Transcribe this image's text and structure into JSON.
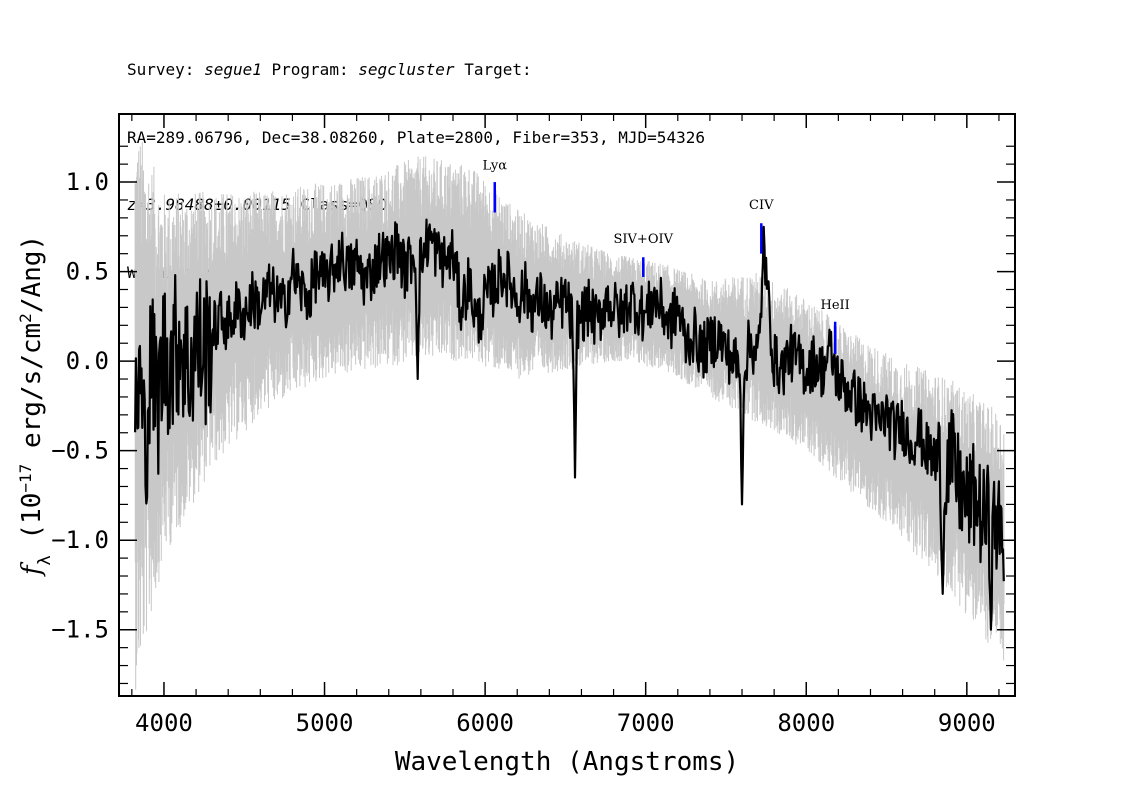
{
  "header": {
    "survey_label": "Survey:",
    "survey": "segue1",
    "program_label": "Program:",
    "program": "segcluster",
    "target_label": "Target:",
    "line2": "RA=289.06796, Dec=38.08260, Plate=2800, Fiber=353, MJD=54326",
    "redshift": "z=3.98488±0.00115",
    "class": "Class=QSO",
    "warnings": "Warnings: SKY SMALL_DELTA_CHI2"
  },
  "chart_data": {
    "type": "line",
    "title": "",
    "xlabel": "Wavelength (Angstroms)",
    "ylabel": "f_λ (10^-17 erg/s/cm²/Ang)",
    "xlim": [
      3720,
      9300
    ],
    "ylim": [
      -1.87,
      1.38
    ],
    "x_ticks": [
      4000,
      5000,
      6000,
      7000,
      8000,
      9000
    ],
    "x_tick_labels": [
      "4000",
      "5000",
      "6000",
      "7000",
      "8000",
      "9000"
    ],
    "y_ticks": [
      -1.5,
      -1.0,
      -0.5,
      0.0,
      0.5,
      1.0
    ],
    "y_tick_labels": [
      "−1.5",
      "−1.0",
      "−0.5",
      "0.0",
      "0.5",
      "1.0"
    ],
    "series": [
      {
        "name": "flux",
        "color": "#000000",
        "x": [
          3820,
          3850,
          3880,
          3920,
          3960,
          4000,
          4050,
          4100,
          4150,
          4200,
          4250,
          4300,
          4350,
          4400,
          4450,
          4500,
          4550,
          4600,
          4650,
          4700,
          4750,
          4800,
          4850,
          4900,
          4950,
          5000,
          5050,
          5100,
          5150,
          5200,
          5250,
          5300,
          5350,
          5400,
          5450,
          5500,
          5550,
          5600,
          5650,
          5700,
          5750,
          5800,
          5850,
          5900,
          5950,
          6000,
          6050,
          6100,
          6150,
          6200,
          6250,
          6300,
          6350,
          6400,
          6450,
          6500,
          6550,
          6600,
          6650,
          6700,
          6750,
          6800,
          6850,
          6900,
          6950,
          7000,
          7050,
          7100,
          7150,
          7200,
          7250,
          7300,
          7350,
          7400,
          7450,
          7500,
          7550,
          7600,
          7650,
          7700,
          7750,
          7800,
          7850,
          7900,
          7950,
          8000,
          8050,
          8100,
          8150,
          8200,
          8250,
          8300,
          8350,
          8400,
          8450,
          8500,
          8550,
          8600,
          8650,
          8700,
          8750,
          8800,
          8850,
          8900,
          8950,
          9000,
          9050,
          9100,
          9150,
          9200,
          9230
        ],
        "y": [
          -0.3,
          -0.1,
          -0.5,
          0.0,
          -0.25,
          0.05,
          0.0,
          0.15,
          -0.05,
          0.1,
          0.05,
          0.15,
          0.25,
          0.2,
          0.3,
          0.25,
          0.35,
          0.3,
          0.4,
          0.35,
          0.3,
          0.5,
          0.4,
          0.35,
          0.5,
          0.45,
          0.5,
          0.6,
          0.5,
          0.55,
          0.45,
          0.5,
          0.6,
          0.55,
          0.65,
          0.5,
          0.6,
          0.55,
          0.7,
          0.6,
          0.55,
          0.6,
          0.3,
          0.45,
          0.2,
          0.35,
          0.4,
          0.5,
          0.45,
          0.35,
          0.4,
          0.3,
          0.35,
          0.25,
          0.3,
          0.35,
          0.2,
          0.25,
          0.3,
          0.2,
          0.35,
          0.3,
          0.25,
          0.35,
          0.3,
          0.25,
          0.35,
          0.3,
          0.2,
          0.3,
          0.1,
          0.15,
          0.05,
          0.1,
          0.15,
          0.05,
          0.0,
          -0.05,
          0.1,
          0.05,
          0.45,
          0.0,
          -0.05,
          0.05,
          0.0,
          -0.05,
          0.0,
          -0.05,
          0.05,
          -0.1,
          -0.15,
          -0.2,
          -0.25,
          -0.3,
          -0.35,
          -0.3,
          -0.4,
          -0.35,
          -0.45,
          -0.4,
          -0.5,
          -0.55,
          -0.6,
          -0.55,
          -0.7,
          -0.8,
          -0.75,
          -0.9,
          -0.85,
          -0.95,
          -1.0
        ],
        "features": [
          {
            "x": 5580,
            "y": -0.1
          },
          {
            "x": 6560,
            "y": -0.65
          },
          {
            "x": 7600,
            "y": -0.8
          },
          {
            "x": 7735,
            "y": 0.75
          },
          {
            "x": 8850,
            "y": -1.3
          },
          {
            "x": 9150,
            "y": -1.5
          }
        ]
      },
      {
        "name": "noise envelope",
        "color": "#c8c8c8",
        "x": [
          3820,
          4000,
          4300,
          4600,
          5000,
          5300,
          5600,
          5900,
          6200,
          6500,
          6800,
          7100,
          7400,
          7700,
          8000,
          8300,
          8600,
          8900,
          9230
        ],
        "upper": [
          1.35,
          0.95,
          0.95,
          0.95,
          1.0,
          1.05,
          1.15,
          1.1,
          0.85,
          0.7,
          0.6,
          0.55,
          0.45,
          0.5,
          0.35,
          0.15,
          0.0,
          -0.1,
          -0.3
        ],
        "lower": [
          -1.85,
          -1.1,
          -0.6,
          -0.3,
          -0.1,
          -0.05,
          0.0,
          0.0,
          -0.1,
          -0.05,
          0.0,
          -0.05,
          -0.2,
          -0.35,
          -0.5,
          -0.75,
          -1.0,
          -1.3,
          -1.7
        ]
      }
    ],
    "line_markers": [
      {
        "label": "Lyα",
        "x": 6060,
        "y_bottom": 0.83,
        "y_top": 1.0,
        "label_y": 1.07
      },
      {
        "label": "SIV+OIV",
        "x": 6985,
        "y_bottom": 0.47,
        "y_top": 0.58,
        "label_y": 0.66
      },
      {
        "label": "CIV",
        "x": 7720,
        "y_bottom": 0.6,
        "y_top": 0.77,
        "label_y": 0.85
      },
      {
        "label": "HeII",
        "x": 8180,
        "y_bottom": 0.04,
        "y_top": 0.22,
        "label_y": 0.29
      }
    ],
    "marker_color": "#0000ff",
    "grid": false,
    "legend": "none"
  }
}
